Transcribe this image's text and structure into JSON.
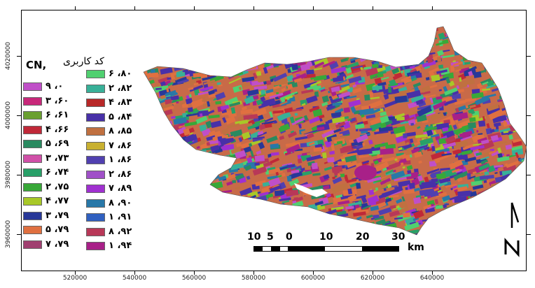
{
  "map": {
    "y_ticks": [
      "4020000",
      "4000000",
      "3980000",
      "3960000"
    ],
    "x_ticks": [
      "520000",
      "540000",
      "560000",
      "580000",
      "600000",
      "620000",
      "640000"
    ]
  },
  "legend": {
    "title_cn": "CN,",
    "title_fa": "کد کاربری",
    "items": [
      {
        "label": "۰، ۹",
        "color": "#c04fc8"
      },
      {
        "label": "۶۰، ۳",
        "color": "#c8287a"
      },
      {
        "label": "۶۱، ۶",
        "color": "#6aa030"
      },
      {
        "label": "۶۶، ۴",
        "color": "#c02838"
      },
      {
        "label": "۶۹، ۵",
        "color": "#2a8a60"
      },
      {
        "label": "۷۳، ۳",
        "color": "#d050a8"
      },
      {
        "label": "۷۴، ۶",
        "color": "#28a068"
      },
      {
        "label": "۷۵، ۲",
        "color": "#38a838"
      },
      {
        "label": "۷۷، ۴",
        "color": "#a8c828"
      },
      {
        "label": "۷۹، ۳",
        "color": "#283898"
      },
      {
        "label": "۷۹، ۵",
        "color": "#e07040"
      },
      {
        "label": "۷۹، ۷",
        "color": "#a04070"
      },
      {
        "label": "۸۰، ۶",
        "color": "#50d070"
      },
      {
        "label": "۸۲، ۲",
        "color": "#38b098"
      },
      {
        "label": "۸۳، ۴",
        "color": "#b82828"
      },
      {
        "label": "۸۴، ۵",
        "color": "#4830a8"
      },
      {
        "label": "۸۵، ۸",
        "color": "#c07040"
      },
      {
        "label": "۸۶، ۷",
        "color": "#c8b030"
      },
      {
        "label": "۸۶، ۱",
        "color": "#5040b0"
      },
      {
        "label": "۸۶، ۲",
        "color": "#a050c8"
      },
      {
        "label": "۸۹، ۷",
        "color": "#a030d0"
      },
      {
        "label": "۹۰، ۸",
        "color": "#2878a8"
      },
      {
        "label": "۹۱، ۱",
        "color": "#3060c0"
      },
      {
        "label": "۹۲، ۸",
        "color": "#b83858"
      },
      {
        "label": "۹۴، ۱",
        "color": "#a82088"
      }
    ]
  },
  "scale": {
    "labels": [
      "10",
      "5",
      "0",
      "10",
      "20",
      "30"
    ],
    "unit": "km"
  }
}
